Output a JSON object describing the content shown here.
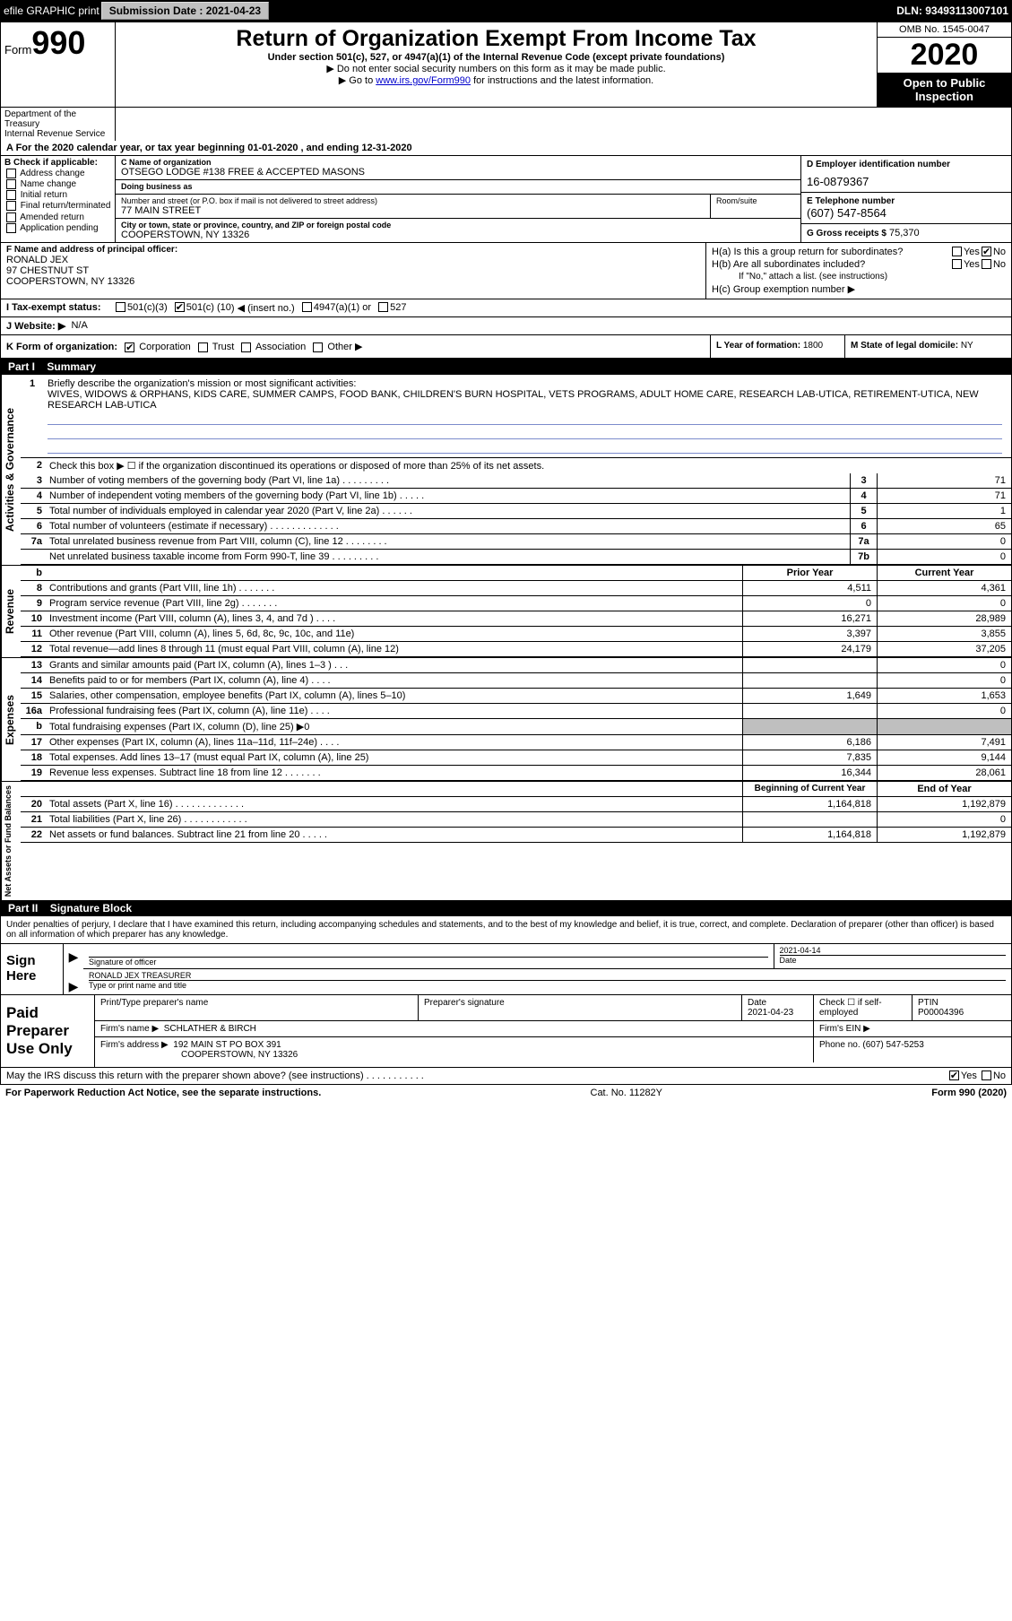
{
  "top_bar": {
    "efile_label": "efile GRAPHIC print",
    "submission_label": "Submission Date : 2021-04-23",
    "dln": "DLN: 93493113007101"
  },
  "header": {
    "form_prefix": "Form",
    "form_number": "990",
    "title": "Return of Organization Exempt From Income Tax",
    "subtitle": "Under section 501(c), 527, or 4947(a)(1) of the Internal Revenue Code (except private foundations)",
    "note1": "▶ Do not enter social security numbers on this form as it may be made public.",
    "note2_pre": "▶ Go to ",
    "note2_link": "www.irs.gov/Form990",
    "note2_post": " for instructions and the latest information.",
    "omb": "OMB No. 1545-0047",
    "year": "2020",
    "public": "Open to Public Inspection",
    "dept": "Department of the Treasury\nInternal Revenue Service"
  },
  "period": "A For the 2020 calendar year, or tax year beginning 01-01-2020    , and ending 12-31-2020",
  "section_b": {
    "heading": "B Check if applicable:",
    "options": [
      "Address change",
      "Name change",
      "Initial return",
      "Final return/terminated",
      "Amended return",
      "Application pending"
    ]
  },
  "section_c": {
    "name_lbl": "C Name of organization",
    "name": "OTSEGO LODGE #138 FREE & ACCEPTED MASONS",
    "dba_lbl": "Doing business as",
    "dba": "",
    "addr_lbl": "Number and street (or P.O. box if mail is not delivered to street address)",
    "addr": "77 MAIN STREET",
    "room_lbl": "Room/suite",
    "city_lbl": "City or town, state or province, country, and ZIP or foreign postal code",
    "city": "COOPERSTOWN, NY  13326"
  },
  "section_d": {
    "lbl": "D Employer identification number",
    "val": "16-0879367"
  },
  "section_e": {
    "lbl": "E Telephone number",
    "val": "(607) 547-8564"
  },
  "section_g": {
    "lbl": "G Gross receipts $",
    "val": "75,370"
  },
  "section_f": {
    "lbl": "F Name and address of principal officer:",
    "name": "RONALD JEX",
    "addr1": "97 CHESTNUT ST",
    "addr2": "COOPERSTOWN, NY  13326"
  },
  "section_h": {
    "ha": "H(a)  Is this a group return for subordinates?",
    "hb": "H(b)  Are all subordinates included?",
    "hb_note": "If \"No,\" attach a list. (see instructions)",
    "hc": "H(c)  Group exemption number ▶",
    "yes": "Yes",
    "no": "No"
  },
  "tax_exempt": {
    "lbl": "I    Tax-exempt status:",
    "c3": "501(c)(3)",
    "cx_pre": "501(c) (",
    "cx_val": "10",
    "cx_post": ") ◀ (insert no.)",
    "a1": "4947(a)(1) or",
    "527": "527"
  },
  "website": {
    "lbl": "J   Website: ▶",
    "val": "N/A"
  },
  "section_k": {
    "lbl": "K Form of organization:",
    "corp": "Corporation",
    "trust": "Trust",
    "assoc": "Association",
    "other": "Other ▶"
  },
  "section_l": {
    "lbl": "L Year of formation:",
    "val": "1800"
  },
  "section_m": {
    "lbl": "M State of legal domicile:",
    "val": "NY"
  },
  "part1": {
    "num": "Part I",
    "title": "Summary"
  },
  "mission": {
    "num": "1",
    "lbl": "Briefly describe the organization's mission or most significant activities:",
    "text": "WIVES, WIDOWS & ORPHANS, KIDS CARE, SUMMER CAMPS, FOOD BANK, CHILDREN'S BURN HOSPITAL, VETS PROGRAMS, ADULT HOME CARE, RESEARCH LAB-UTICA, RETIREMENT-UTICA, NEW RESEARCH LAB-UTICA"
  },
  "line2": "Check this box ▶ ☐  if the organization discontinued its operations or disposed of more than 25% of its net assets.",
  "gov_rows": [
    {
      "n": "3",
      "t": "Number of voting members of the governing body (Part VI, line 1a)  .   .   .   .   .   .   .   .   .",
      "b": "3",
      "v": "71"
    },
    {
      "n": "4",
      "t": "Number of independent voting members of the governing body (Part VI, line 1b)  .   .   .   .   .",
      "b": "4",
      "v": "71"
    },
    {
      "n": "5",
      "t": "Total number of individuals employed in calendar year 2020 (Part V, line 2a)  .   .   .   .   .   .",
      "b": "5",
      "v": "1"
    },
    {
      "n": "6",
      "t": "Total number of volunteers (estimate if necessary)   .   .   .   .   .   .   .   .   .   .   .   .   .",
      "b": "6",
      "v": "65"
    },
    {
      "n": "7a",
      "t": "Total unrelated business revenue from Part VIII, column (C), line 12  .   .   .   .   .   .   .   .",
      "b": "7a",
      "v": "0"
    },
    {
      "n": "",
      "t": "Net unrelated business taxable income from Form 990-T, line 39   .   .   .   .   .   .   .   .   .",
      "b": "7b",
      "v": "0"
    }
  ],
  "vtabs": {
    "gov": "Activities & Governance",
    "rev": "Revenue",
    "exp": "Expenses",
    "net": "Net Assets or Fund Balances"
  },
  "col_hdr": {
    "prior": "Prior Year",
    "current": "Current Year"
  },
  "rev_rows": [
    {
      "n": "8",
      "t": "Contributions and grants (Part VIII, line 1h)   .   .   .   .   .   .   .",
      "p": "4,511",
      "c": "4,361"
    },
    {
      "n": "9",
      "t": "Program service revenue (Part VIII, line 2g)   .   .   .   .   .   .   .",
      "p": "0",
      "c": "0"
    },
    {
      "n": "10",
      "t": "Investment income (Part VIII, column (A), lines 3, 4, and 7d )   .   .   .   .",
      "p": "16,271",
      "c": "28,989"
    },
    {
      "n": "11",
      "t": "Other revenue (Part VIII, column (A), lines 5, 6d, 8c, 9c, 10c, and 11e)",
      "p": "3,397",
      "c": "3,855"
    },
    {
      "n": "12",
      "t": "Total revenue—add lines 8 through 11 (must equal Part VIII, column (A), line 12)",
      "p": "24,179",
      "c": "37,205"
    }
  ],
  "exp_rows": [
    {
      "n": "13",
      "t": "Grants and similar amounts paid (Part IX, column (A), lines 1–3 )  .   .   .",
      "p": "",
      "c": "0"
    },
    {
      "n": "14",
      "t": "Benefits paid to or for members (Part IX, column (A), line 4)  .   .   .   .",
      "p": "",
      "c": "0"
    },
    {
      "n": "15",
      "t": "Salaries, other compensation, employee benefits (Part IX, column (A), lines 5–10)",
      "p": "1,649",
      "c": "1,653"
    },
    {
      "n": "16a",
      "t": "Professional fundraising fees (Part IX, column (A), line 11e)  .   .   .   .",
      "p": "",
      "c": "0"
    },
    {
      "n": "b",
      "t": "Total fundraising expenses (Part IX, column (D), line 25) ▶0",
      "p": "shade",
      "c": "shade"
    },
    {
      "n": "17",
      "t": "Other expenses (Part IX, column (A), lines 11a–11d, 11f–24e)  .   .   .   .",
      "p": "6,186",
      "c": "7,491"
    },
    {
      "n": "18",
      "t": "Total expenses. Add lines 13–17 (must equal Part IX, column (A), line 25)",
      "p": "7,835",
      "c": "9,144"
    },
    {
      "n": "19",
      "t": "Revenue less expenses. Subtract line 18 from line 12  .   .   .   .   .   .   .",
      "p": "16,344",
      "c": "28,061"
    }
  ],
  "net_hdr": {
    "beg": "Beginning of Current Year",
    "end": "End of Year"
  },
  "net_rows": [
    {
      "n": "20",
      "t": "Total assets (Part X, line 16)  .   .   .   .   .   .   .   .   .   .   .   .   .",
      "p": "1,164,818",
      "c": "1,192,879"
    },
    {
      "n": "21",
      "t": "Total liabilities (Part X, line 26)  .   .   .   .   .   .   .   .   .   .   .   .",
      "p": "",
      "c": "0"
    },
    {
      "n": "22",
      "t": "Net assets or fund balances. Subtract line 21 from line 20  .   .   .   .   .",
      "p": "1,164,818",
      "c": "1,192,879"
    }
  ],
  "part2": {
    "num": "Part II",
    "title": "Signature Block"
  },
  "declaration": "Under penalties of perjury, I declare that I have examined this return, including accompanying schedules and statements, and to the best of my knowledge and belief, it is true, correct, and complete. Declaration of preparer (other than officer) is based on all information of which preparer has any knowledge.",
  "sign": {
    "label": "Sign Here",
    "sig_lbl": "Signature of officer",
    "date_lbl": "Date",
    "date": "2021-04-14",
    "name": "RONALD JEX TREASURER",
    "name_lbl": "Type or print name and title"
  },
  "paid": {
    "label": "Paid Preparer Use Only",
    "prep_name_lbl": "Print/Type preparer's name",
    "prep_sig_lbl": "Preparer's signature",
    "date_lbl": "Date",
    "date": "2021-04-23",
    "check_lbl": "Check ☐ if self-employed",
    "ptin_lbl": "PTIN",
    "ptin": "P00004396",
    "firm_name_lbl": "Firm's name     ▶",
    "firm_name": "SCHLATHER & BIRCH",
    "firm_ein_lbl": "Firm's EIN ▶",
    "firm_addr_lbl": "Firm's address ▶",
    "firm_addr1": "192 MAIN ST PO BOX 391",
    "firm_addr2": "COOPERSTOWN, NY  13326",
    "phone_lbl": "Phone no.",
    "phone": "(607) 547-5253"
  },
  "discuss": {
    "q": "May the IRS discuss this return with the preparer shown above? (see instructions)   .   .   .   .   .   .   .   .   .   .   .",
    "yes": "Yes",
    "no": "No"
  },
  "footer": {
    "left": "For Paperwork Reduction Act Notice, see the separate instructions.",
    "mid": "Cat. No. 11282Y",
    "right": "Form 990 (2020)"
  },
  "colors": {
    "black": "#000000",
    "white": "#ffffff",
    "gray_shade": "#bfbfbf",
    "button_gray": "#c0c0c0",
    "link_blue": "#0033cc",
    "rule_blue": "#7c8ccc"
  }
}
